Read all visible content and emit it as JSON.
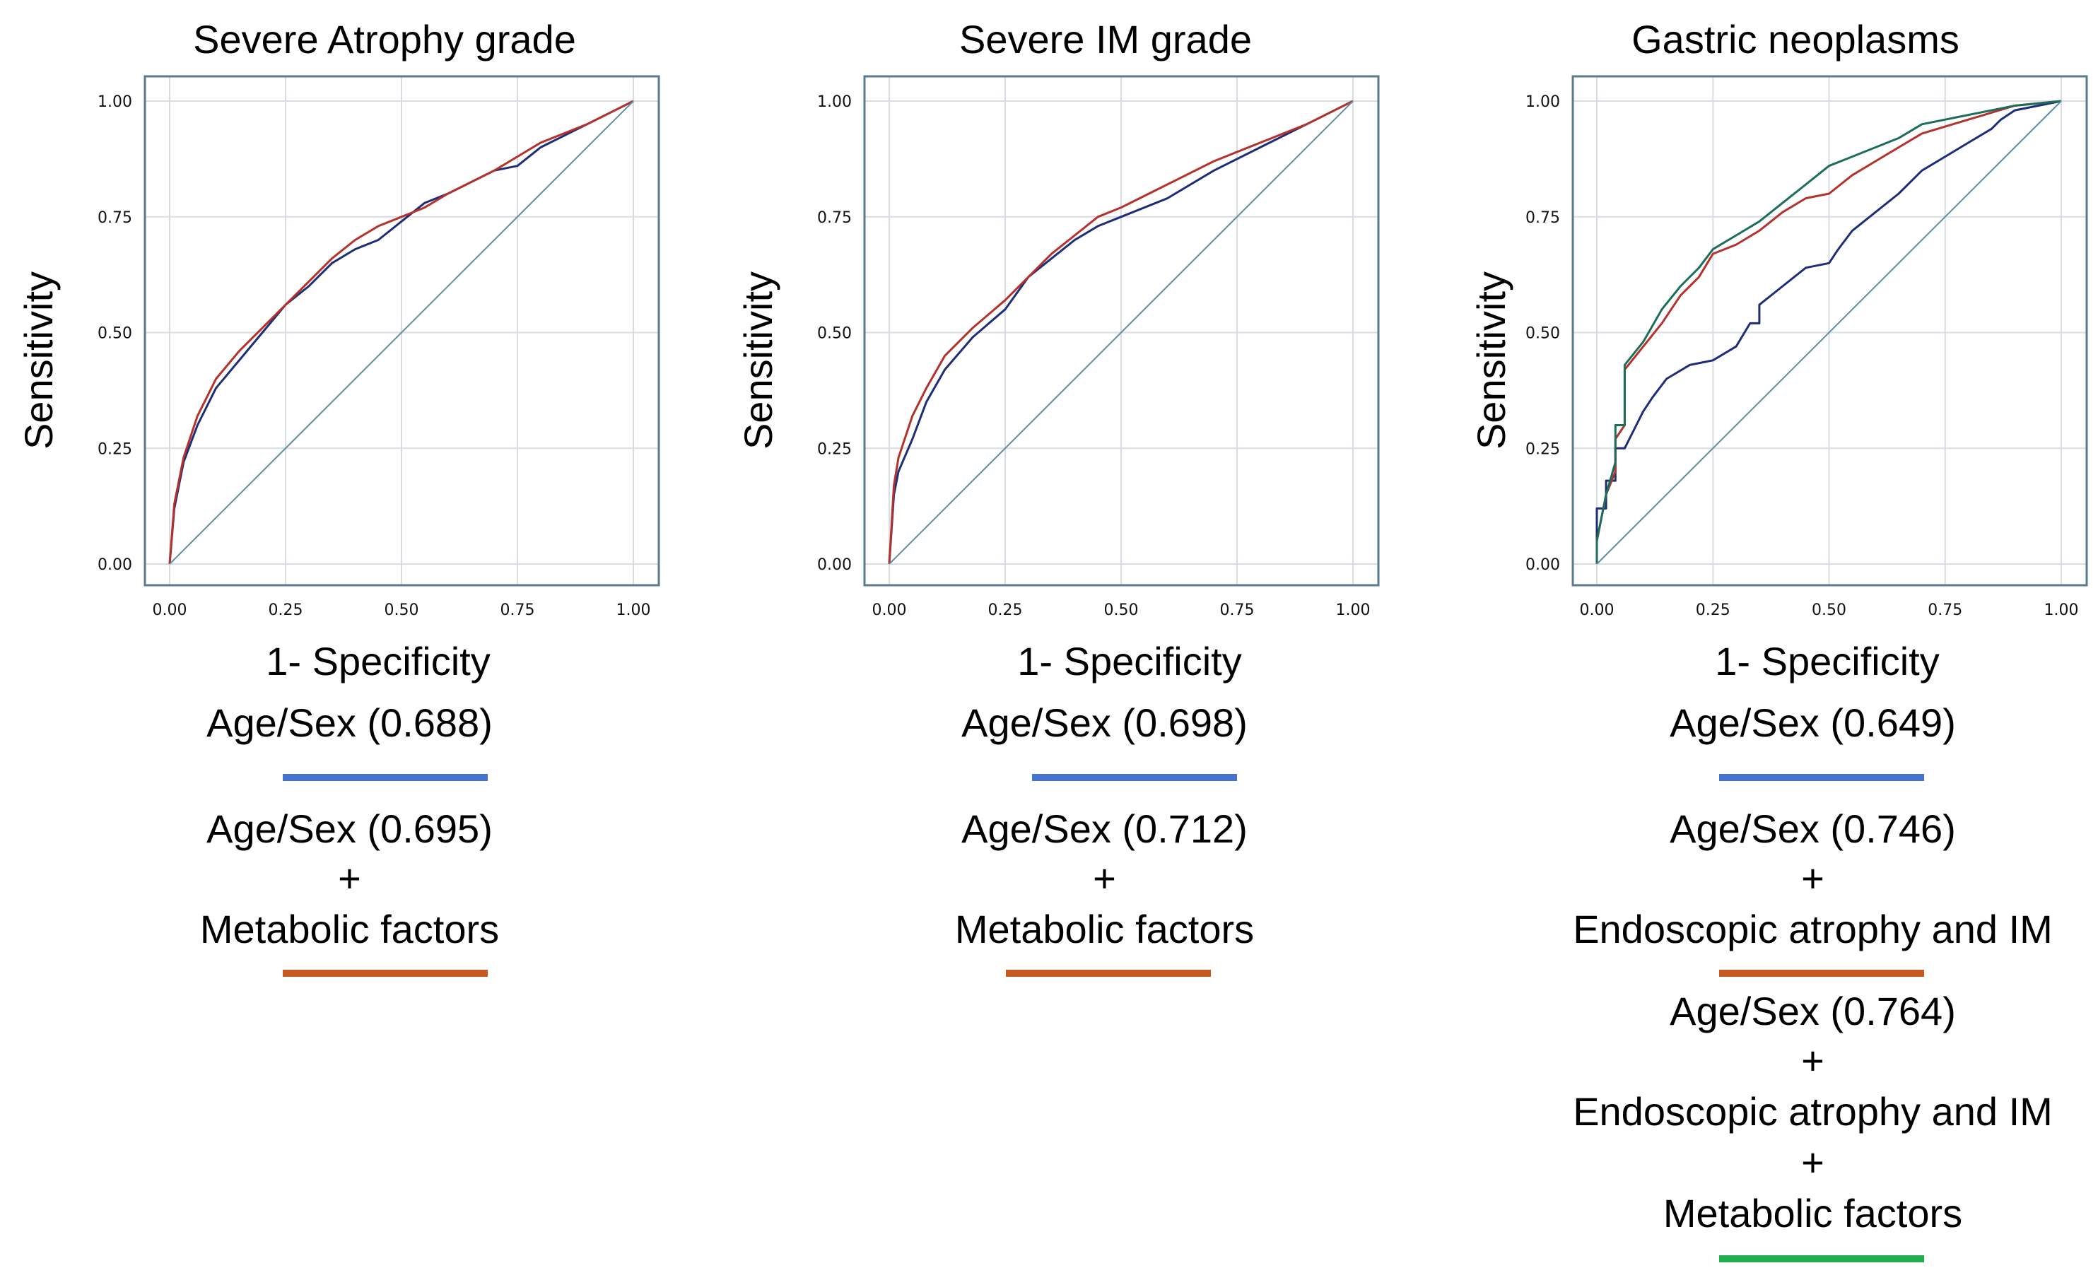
{
  "colors": {
    "age_sex": "#4473d4",
    "metabolic": "#c65a1e",
    "combined": "#1fad4e",
    "frame": "#5a7a8e",
    "grid": "#d9dde3",
    "diag": "#5d8ea3",
    "curve_blue": "#1d2d78",
    "curve_red": "#b5322c",
    "curve_green": "#1c6e5a"
  },
  "chart_data": [
    {
      "type": "line",
      "title": "Severe Atrophy grade",
      "xlabel": "1- Specificity",
      "ylabel": "Sensitivity",
      "xlim": [
        0,
        1
      ],
      "ylim": [
        0,
        1
      ],
      "xticks": [
        "0.00",
        "0.25",
        "0.50",
        "0.75",
        "1.00"
      ],
      "yticks": [
        "0.00",
        "0.25",
        "0.50",
        "0.75",
        "1.00"
      ],
      "grid": true,
      "series": [
        {
          "name": "Age/Sex",
          "auc": "0.688",
          "color": "curve_blue",
          "x": [
            0,
            0.01,
            0.03,
            0.06,
            0.1,
            0.15,
            0.2,
            0.25,
            0.3,
            0.35,
            0.4,
            0.45,
            0.5,
            0.55,
            0.6,
            0.7,
            0.75,
            0.8,
            0.9,
            1.0
          ],
          "y": [
            0,
            0.12,
            0.22,
            0.3,
            0.38,
            0.44,
            0.5,
            0.56,
            0.6,
            0.65,
            0.68,
            0.7,
            0.74,
            0.78,
            0.8,
            0.85,
            0.86,
            0.9,
            0.95,
            1.0
          ]
        },
        {
          "name": "Age/Sex + Metabolic factors",
          "auc": "0.695",
          "color": "curve_red",
          "x": [
            0,
            0.01,
            0.03,
            0.06,
            0.1,
            0.15,
            0.2,
            0.25,
            0.3,
            0.35,
            0.4,
            0.45,
            0.5,
            0.55,
            0.6,
            0.7,
            0.75,
            0.8,
            0.9,
            1.0
          ],
          "y": [
            0,
            0.13,
            0.23,
            0.32,
            0.4,
            0.46,
            0.51,
            0.56,
            0.61,
            0.66,
            0.7,
            0.73,
            0.75,
            0.77,
            0.8,
            0.85,
            0.88,
            0.91,
            0.95,
            1.0
          ]
        },
        {
          "name": "Reference",
          "color": "diag",
          "x": [
            0,
            1
          ],
          "y": [
            0,
            1
          ]
        }
      ]
    },
    {
      "type": "line",
      "title": "Severe IM grade",
      "xlabel": "1- Specificity",
      "ylabel": "Sensitivity",
      "xlim": [
        0,
        1
      ],
      "ylim": [
        0,
        1
      ],
      "xticks": [
        "0.00",
        "0.25",
        "0.50",
        "0.75",
        "1.00"
      ],
      "yticks": [
        "0.00",
        "0.25",
        "0.50",
        "0.75",
        "1.00"
      ],
      "grid": true,
      "series": [
        {
          "name": "Age/Sex",
          "auc": "0.698",
          "color": "curve_blue",
          "x": [
            0,
            0.01,
            0.02,
            0.05,
            0.08,
            0.12,
            0.18,
            0.25,
            0.3,
            0.35,
            0.4,
            0.45,
            0.5,
            0.6,
            0.7,
            0.8,
            0.9,
            1.0
          ],
          "y": [
            0,
            0.15,
            0.2,
            0.27,
            0.35,
            0.42,
            0.49,
            0.55,
            0.62,
            0.66,
            0.7,
            0.73,
            0.75,
            0.79,
            0.85,
            0.9,
            0.95,
            1.0
          ]
        },
        {
          "name": "Age/Sex + Metabolic factors",
          "auc": "0.712",
          "color": "curve_red",
          "x": [
            0,
            0.01,
            0.02,
            0.05,
            0.08,
            0.12,
            0.18,
            0.25,
            0.3,
            0.35,
            0.4,
            0.45,
            0.5,
            0.6,
            0.7,
            0.8,
            0.9,
            1.0
          ],
          "y": [
            0,
            0.17,
            0.23,
            0.32,
            0.38,
            0.45,
            0.51,
            0.57,
            0.62,
            0.67,
            0.71,
            0.75,
            0.77,
            0.82,
            0.87,
            0.91,
            0.95,
            1.0
          ]
        },
        {
          "name": "Reference",
          "color": "diag",
          "x": [
            0,
            1
          ],
          "y": [
            0,
            1
          ]
        }
      ]
    },
    {
      "type": "line",
      "title": "Gastric neoplasms",
      "xlabel": "1- Specificity",
      "ylabel": "Sensitivity",
      "xlim": [
        0,
        1
      ],
      "ylim": [
        0,
        1
      ],
      "xticks": [
        "0.00",
        "0.25",
        "0.50",
        "0.75",
        "1.00"
      ],
      "yticks": [
        "0.00",
        "0.25",
        "0.50",
        "0.75",
        "1.00"
      ],
      "grid": true,
      "series": [
        {
          "name": "Age/Sex",
          "auc": "0.649",
          "color": "curve_blue",
          "x": [
            0,
            0.0,
            0.02,
            0.02,
            0.04,
            0.04,
            0.06,
            0.08,
            0.1,
            0.12,
            0.15,
            0.2,
            0.25,
            0.3,
            0.33,
            0.35,
            0.35,
            0.4,
            0.45,
            0.5,
            0.52,
            0.55,
            0.6,
            0.65,
            0.7,
            0.75,
            0.8,
            0.85,
            0.87,
            0.9,
            1.0
          ],
          "y": [
            0,
            0.12,
            0.12,
            0.18,
            0.18,
            0.25,
            0.25,
            0.29,
            0.33,
            0.36,
            0.4,
            0.43,
            0.44,
            0.47,
            0.52,
            0.52,
            0.56,
            0.6,
            0.64,
            0.65,
            0.68,
            0.72,
            0.76,
            0.8,
            0.85,
            0.88,
            0.91,
            0.94,
            0.96,
            0.98,
            1.0
          ]
        },
        {
          "name": "Age/Sex + Endoscopic atrophy and IM",
          "auc": "0.746",
          "color": "curve_red",
          "x": [
            0,
            0.0,
            0.02,
            0.04,
            0.04,
            0.06,
            0.06,
            0.1,
            0.14,
            0.18,
            0.22,
            0.25,
            0.3,
            0.35,
            0.4,
            0.45,
            0.5,
            0.55,
            0.6,
            0.65,
            0.7,
            0.8,
            0.9,
            1.0
          ],
          "y": [
            0,
            0.05,
            0.15,
            0.2,
            0.27,
            0.3,
            0.42,
            0.47,
            0.52,
            0.58,
            0.62,
            0.67,
            0.69,
            0.72,
            0.76,
            0.79,
            0.8,
            0.84,
            0.87,
            0.9,
            0.93,
            0.96,
            0.99,
            1.0
          ]
        },
        {
          "name": "Age/Sex + Endoscopic atrophy and IM + Metabolic factors",
          "auc": "0.764",
          "color": "curve_green",
          "x": [
            0,
            0.0,
            0.02,
            0.04,
            0.04,
            0.06,
            0.06,
            0.1,
            0.14,
            0.18,
            0.22,
            0.25,
            0.3,
            0.35,
            0.4,
            0.45,
            0.5,
            0.55,
            0.6,
            0.65,
            0.7,
            0.8,
            0.9,
            1.0
          ],
          "y": [
            0,
            0.05,
            0.15,
            0.22,
            0.3,
            0.3,
            0.43,
            0.48,
            0.55,
            0.6,
            0.64,
            0.68,
            0.71,
            0.74,
            0.78,
            0.82,
            0.86,
            0.88,
            0.9,
            0.92,
            0.95,
            0.97,
            0.99,
            1.0
          ]
        },
        {
          "name": "Reference",
          "color": "diag",
          "x": [
            0,
            1
          ],
          "y": [
            0,
            1
          ]
        }
      ]
    }
  ],
  "legends": [
    {
      "block1": {
        "text": "Age/Sex (0.688)"
      },
      "block2": {
        "line1": "Age/Sex (0.695)",
        "line2": "+",
        "line3": "Metabolic factors"
      }
    },
    {
      "block1": {
        "text": "Age/Sex (0.698)"
      },
      "block2": {
        "line1": "Age/Sex (0.712)",
        "line2": "+",
        "line3": "Metabolic factors"
      }
    },
    {
      "block1": {
        "text": "Age/Sex (0.649)"
      },
      "block2": {
        "line1": "Age/Sex (0.746)",
        "line2": "+",
        "line3": "Endoscopic atrophy and IM"
      },
      "block3": {
        "line1": "Age/Sex (0.764)",
        "line2": "+",
        "line3": "Endoscopic atrophy and IM",
        "line4": "+",
        "line5": "Metabolic factors"
      }
    }
  ]
}
